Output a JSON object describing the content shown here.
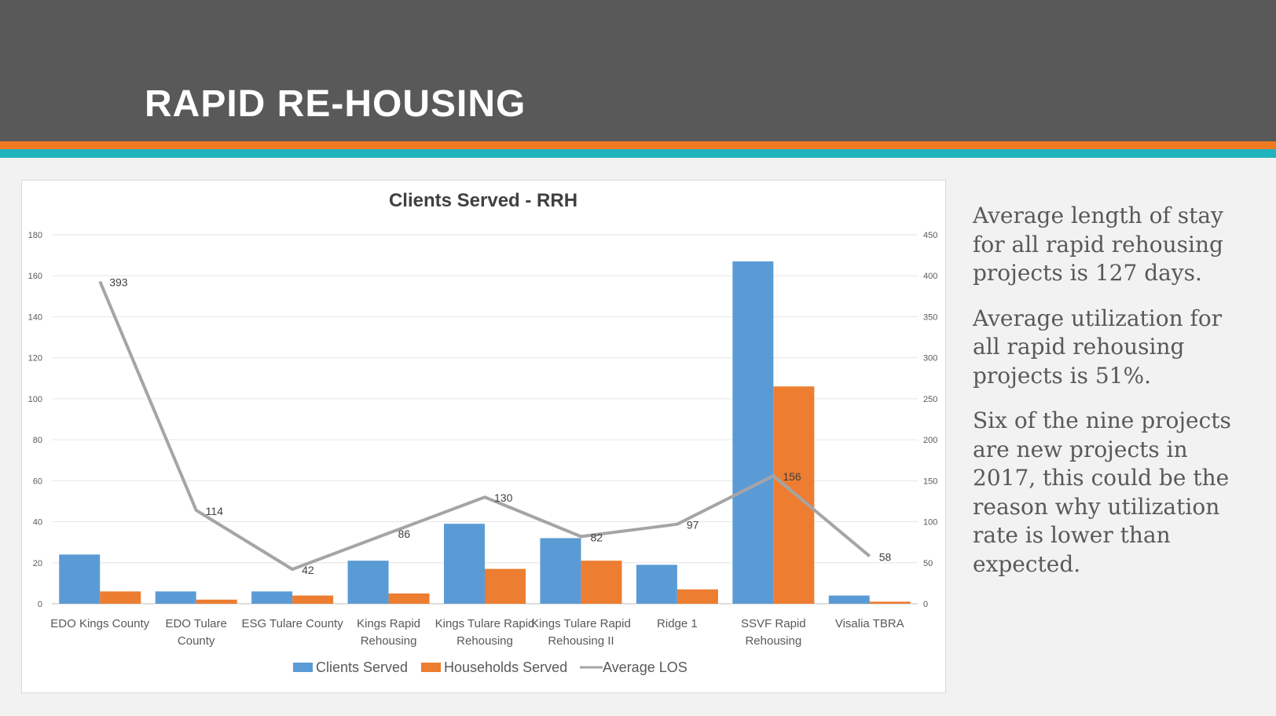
{
  "slide": {
    "title": "RAPID RE-HOUSING",
    "paragraphs": [
      "Average length of stay for all rapid rehousing projects is 127 days.",
      "Average utilization for all rapid rehousing projects is 51%.",
      "Six of the nine projects are new projects in 2017, this could be the reason why utilization rate is lower than expected."
    ]
  },
  "colors": {
    "header": "#595959",
    "accent_orange": "#f07a22",
    "accent_teal": "#1fb3bd",
    "clients": "#5b9bd5",
    "households": "#ed7d31",
    "los": "#a5a5a5"
  },
  "chart_data": {
    "type": "bar",
    "title": "Clients Served - RRH",
    "categories": [
      [
        "EDO Kings County"
      ],
      [
        "EDO Tulare",
        "County"
      ],
      [
        "ESG Tulare County"
      ],
      [
        "Kings Rapid",
        "Rehousing"
      ],
      [
        "Kings Tulare Rapid",
        "Rehousing"
      ],
      [
        "Kings Tulare Rapid",
        "Rehousing II"
      ],
      [
        "Ridge 1"
      ],
      [
        "SSVF Rapid",
        "Rehousing"
      ],
      [
        "Visalia TBRA"
      ]
    ],
    "series": [
      {
        "name": "Clients Served",
        "type": "bar",
        "axis": "left",
        "values": [
          24,
          6,
          6,
          21,
          39,
          32,
          19,
          167,
          4
        ]
      },
      {
        "name": "Households Served",
        "type": "bar",
        "axis": "left",
        "values": [
          6,
          2,
          4,
          5,
          17,
          21,
          7,
          106,
          1
        ]
      },
      {
        "name": "Average LOS",
        "type": "line",
        "axis": "right",
        "values": [
          393,
          114,
          42,
          86,
          130,
          82,
          97,
          156,
          58
        ],
        "labels": [
          "393",
          "114",
          "42",
          "86",
          "130",
          "82",
          "97",
          "156",
          "58"
        ]
      }
    ],
    "ylim_left": [
      0,
      180
    ],
    "ylim_right": [
      0,
      450
    ],
    "yticks_left": [
      "0",
      "20",
      "40",
      "60",
      "80",
      "100",
      "120",
      "140",
      "160",
      "180"
    ],
    "yticks_right": [
      "0",
      "50",
      "100",
      "150",
      "200",
      "250",
      "300",
      "350",
      "400",
      "450"
    ],
    "grid": true,
    "legend_position": "bottom"
  }
}
